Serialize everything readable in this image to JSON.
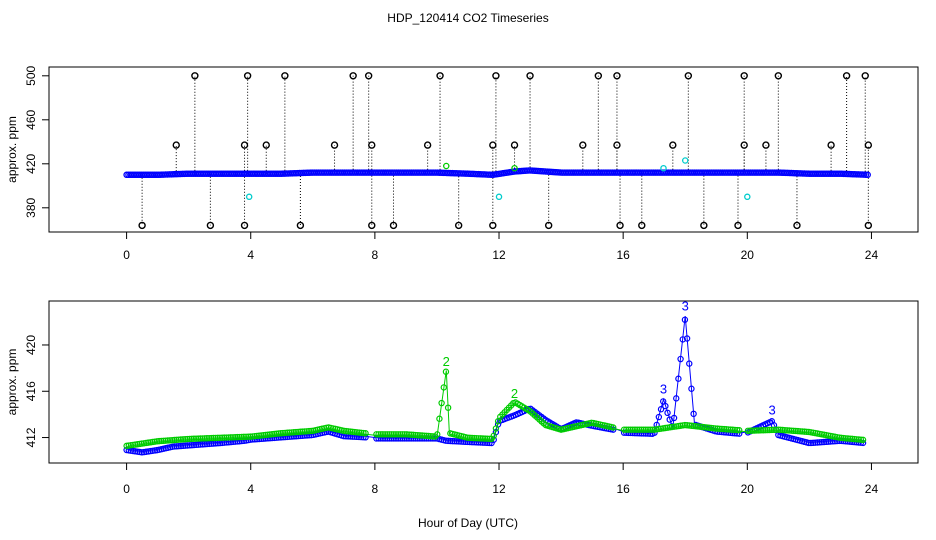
{
  "chart_data": [
    {
      "type": "scatter",
      "title": "HDP_120414  CO2 Timeseries",
      "xlabel": "",
      "ylabel": "approx. ppm",
      "xlim": [
        -2.5,
        25.5
      ],
      "ylim": [
        358,
        508
      ],
      "xticks": [
        "0",
        "4",
        "8",
        "12",
        "16",
        "20",
        "24"
      ],
      "yticks": [
        "380",
        "420",
        "460",
        "500"
      ],
      "baseline": {
        "name": "",
        "color": "#0000ff",
        "x": [
          0,
          1,
          2,
          3,
          4,
          5,
          6,
          7,
          8,
          9,
          10,
          11,
          11.8,
          12.5,
          13,
          13.5,
          14,
          15,
          16,
          17,
          18,
          19,
          20,
          21,
          22,
          23,
          23.9
        ],
        "y": [
          410,
          410,
          411,
          411,
          411,
          411,
          412,
          412,
          412,
          412,
          412,
          411,
          410,
          413,
          414,
          413,
          412,
          412,
          412,
          412,
          412,
          412,
          412,
          412,
          411,
          411,
          410
        ]
      },
      "spikes_high": {
        "color": "#000000",
        "x": [
          2.2,
          3.9,
          5.1,
          7.3,
          7.8,
          10.1,
          11.9,
          13.0,
          15.2,
          15.8,
          18.1,
          19.9,
          21.0,
          23.2,
          23.8
        ],
        "y": [
          500,
          500,
          500,
          500,
          500,
          500,
          500,
          500,
          500,
          500,
          500,
          500,
          500,
          500,
          500
        ]
      },
      "spikes_mid": {
        "color": "#000000",
        "x": [
          1.6,
          3.8,
          4.5,
          6.7,
          7.9,
          9.7,
          11.8,
          12.5,
          14.7,
          15.8,
          17.6,
          19.9,
          20.6,
          22.7,
          23.9
        ],
        "y": [
          437,
          437,
          437,
          437,
          437,
          437,
          437,
          437,
          437,
          437,
          437,
          437,
          437,
          437,
          437
        ]
      },
      "spikes_low": {
        "color": "#000000",
        "x": [
          0.5,
          2.7,
          3.8,
          5.6,
          7.9,
          8.6,
          10.7,
          11.8,
          13.6,
          15.9,
          16.6,
          18.6,
          19.7,
          21.6,
          23.9
        ],
        "y": [
          364,
          364,
          364,
          364,
          364,
          364,
          364,
          364,
          364,
          364,
          364,
          364,
          364,
          364,
          364
        ]
      },
      "cyan_points": {
        "color": "#00cccc",
        "x": [
          3.95,
          12.0,
          20.0,
          17.3,
          18.0
        ],
        "y": [
          390,
          390,
          390,
          416,
          423
        ]
      },
      "green_points": {
        "color": "#00cc00",
        "x": [
          10.3,
          12.5
        ],
        "y": [
          418,
          416
        ]
      }
    },
    {
      "type": "scatter",
      "title": "",
      "xlabel": "Hour of Day (UTC)",
      "ylabel": "approx. ppm",
      "xlim": [
        -2.5,
        25.5
      ],
      "ylim": [
        409.8,
        423.8
      ],
      "xticks": [
        "0",
        "4",
        "8",
        "12",
        "16",
        "20",
        "24"
      ],
      "yticks": [
        "412",
        "416",
        "420"
      ],
      "series": [
        {
          "name": "",
          "color": "#0000ff",
          "x": [
            0,
            0.5,
            1,
            1.5,
            2,
            3,
            3.8,
            4,
            5,
            6,
            6.5,
            7,
            7.7,
            8,
            9,
            10,
            10.3,
            11,
            11.8,
            12,
            12.5,
            13,
            13.5,
            14,
            14.5,
            15,
            15.8,
            16,
            17,
            17.3,
            17.6,
            18,
            18.3,
            19,
            19.8,
            20,
            20.8,
            21,
            22,
            23,
            23.8
          ],
          "y": [
            411.0,
            410.8,
            411.0,
            411.3,
            411.4,
            411.6,
            411.8,
            411.9,
            412.1,
            412.3,
            412.6,
            412.2,
            412.1,
            412.0,
            412.0,
            412.0,
            411.8,
            411.7,
            411.6,
            413.5,
            414.0,
            414.6,
            413.6,
            412.8,
            413.4,
            413.1,
            412.7,
            412.5,
            412.4,
            415.3,
            412.8,
            422.5,
            413.2,
            412.6,
            412.4,
            412.5,
            413.5,
            412.3,
            411.6,
            411.8,
            411.6
          ]
        },
        {
          "name": "",
          "color": "#00cc00",
          "x": [
            0,
            1,
            2,
            3,
            4,
            5,
            6,
            6.5,
            7,
            8,
            9,
            10,
            10.3,
            10.4,
            11,
            11.8,
            12,
            12.5,
            13,
            13.5,
            14,
            15,
            16,
            17,
            18,
            19,
            20,
            21,
            22,
            23,
            23.8
          ],
          "y": [
            411.2,
            411.6,
            411.8,
            411.9,
            412.0,
            412.3,
            412.5,
            412.8,
            412.5,
            412.2,
            412.2,
            412.0,
            417.8,
            412.3,
            411.9,
            411.8,
            413.6,
            415.0,
            414.2,
            413.0,
            412.6,
            413.2,
            412.6,
            412.6,
            413.0,
            412.7,
            412.5,
            412.6,
            412.4,
            411.9,
            411.7
          ]
        }
      ],
      "annotations": [
        {
          "text": "2",
          "color": "#00cc00",
          "x": 10.3,
          "y": 418.2
        },
        {
          "text": "2",
          "color": "#00cc00",
          "x": 12.5,
          "y": 415.4
        },
        {
          "text": "3",
          "color": "#0000ff",
          "x": 17.3,
          "y": 415.8
        },
        {
          "text": "3",
          "color": "#0000ff",
          "x": 18.0,
          "y": 423.0
        },
        {
          "text": "3",
          "color": "#0000ff",
          "x": 20.8,
          "y": 414.0
        }
      ]
    }
  ]
}
